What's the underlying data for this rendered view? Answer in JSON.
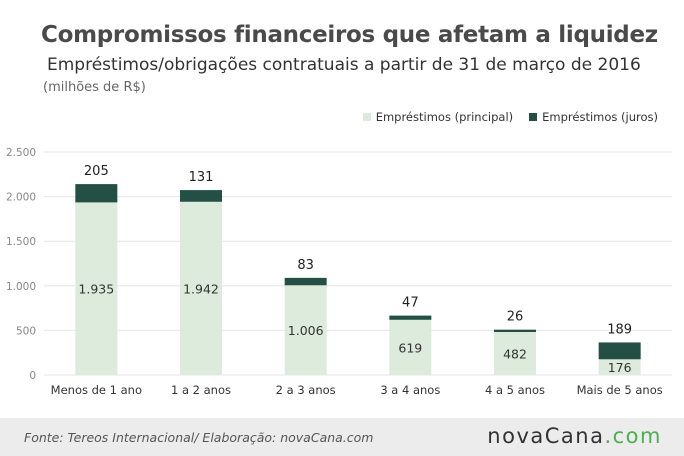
{
  "title": "Compromissos financeiros que afetam a liquidez",
  "subtitle": "Empréstimos/obrigações contratuais a partir de 31 de março de 2016",
  "unit": "(milhões de R$)",
  "source": "Fonte: Tereos Internacional/ Elaboração: novaCana.com",
  "brand": {
    "name": "novaCana",
    "dot": ".",
    "tld": "com"
  },
  "colors": {
    "principal": "#dcebdc",
    "juros": "#234f45",
    "grid": "#e6e6e6",
    "axis_text": "#888888"
  },
  "chart_data": {
    "type": "bar",
    "stacked": true,
    "title": "Compromissos financeiros que afetam a liquidez",
    "subtitle": "Empréstimos/obrigações contratuais a partir de 31 de março de 2016",
    "ylabel": "(milhões de R$)",
    "categories": [
      "Menos de 1 ano",
      "1 a 2 anos",
      "2 a 3 anos",
      "3 a 4 anos",
      "4 a 5 anos",
      "Mais de 5 anos"
    ],
    "series": [
      {
        "name": "Empréstimos (principal)",
        "values": [
          1935,
          1942,
          1006,
          619,
          482,
          176
        ],
        "labels": [
          "1.935",
          "1.942",
          "1.006",
          "619",
          "482",
          "176"
        ]
      },
      {
        "name": "Empréstimos (juros)",
        "values": [
          205,
          131,
          83,
          47,
          26,
          189
        ],
        "labels": [
          "205",
          "131",
          "83",
          "47",
          "26",
          "189"
        ]
      }
    ],
    "ylim": [
      0,
      2500
    ],
    "yticks": [
      0,
      500,
      1000,
      1500,
      2000,
      2500
    ],
    "ytick_labels": [
      "0",
      "500",
      "1.000",
      "1.500",
      "2.000",
      "2.500"
    ],
    "grid": true,
    "legend_position": "top-right"
  }
}
